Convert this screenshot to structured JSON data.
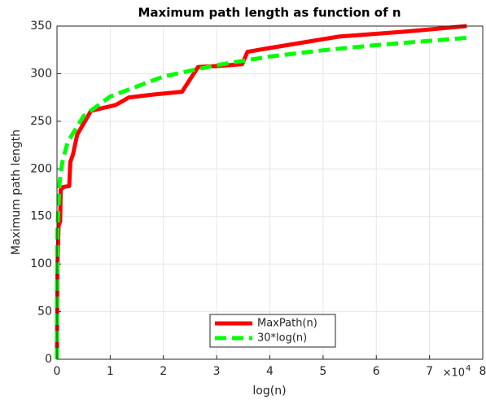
{
  "chart_data": {
    "type": "line",
    "title": "Maximum path length as function of n",
    "x_label": "log(n)",
    "y_label": "Maximum path length",
    "x_multiplier": {
      "base": "×10",
      "exponent": "4"
    },
    "xlim": [
      0,
      80000
    ],
    "ylim": [
      0,
      350
    ],
    "xticks": [
      0,
      {
        "value": 10000,
        "label": "1"
      },
      {
        "value": 20000,
        "label": "2"
      },
      {
        "value": 30000,
        "label": "3"
      },
      {
        "value": 40000,
        "label": "4"
      },
      {
        "value": 50000,
        "label": "5"
      },
      {
        "value": 60000,
        "label": "6"
      },
      {
        "value": 70000,
        "label": "7"
      },
      {
        "value": 80000,
        "label": "8"
      }
    ],
    "yticks": [
      0,
      50,
      100,
      150,
      200,
      250,
      300,
      350
    ],
    "grid": true,
    "legend": "bottom",
    "series": [
      {
        "name": "MaxPath(n)",
        "color": "#ff0000",
        "line_style": "solid",
        "x": [
          0,
          100,
          300,
          600,
          700,
          1200,
          2300,
          2500,
          3000,
          3800,
          6400,
          11000,
          13500,
          18000,
          23500,
          26500,
          30000,
          34800,
          35800,
          40000,
          53000,
          65000,
          77000
        ],
        "values": [
          0,
          100,
          140,
          145,
          178,
          181,
          182,
          207,
          215,
          236,
          261,
          267,
          275,
          278,
          281,
          307,
          308,
          310,
          323,
          327,
          339,
          344,
          350
        ]
      },
      {
        "name": "30*log(n)",
        "color": "#00ff00",
        "line_style": "dashed",
        "x": [
          1,
          2,
          10,
          100,
          500,
          1000,
          2000,
          5000,
          10000,
          20000,
          30000,
          40000,
          50000,
          60000,
          77000
        ],
        "values": [
          0,
          20.8,
          69,
          138,
          186,
          207,
          228,
          255.5,
          276,
          297,
          309,
          318,
          324.6,
          330,
          337.6
        ]
      }
    ]
  }
}
